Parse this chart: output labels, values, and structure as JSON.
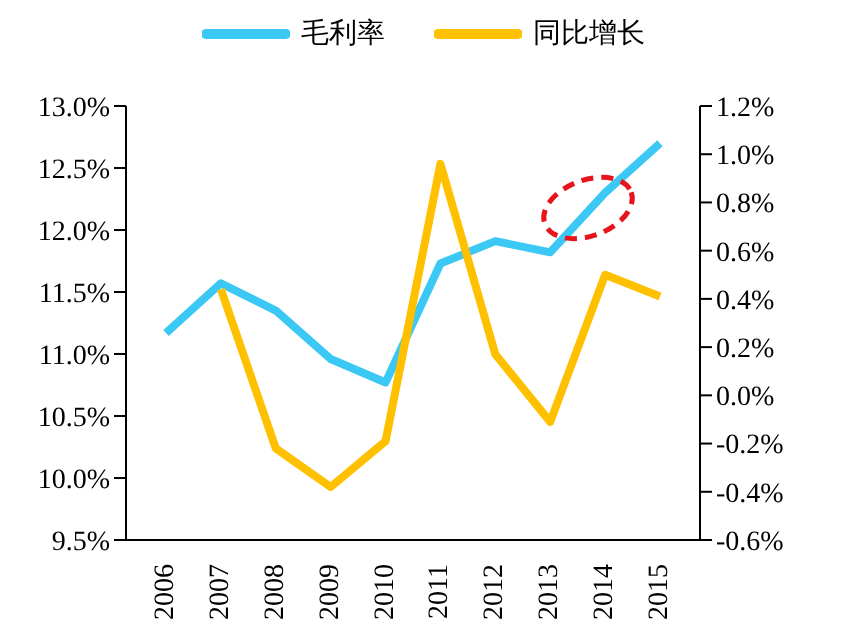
{
  "chart_data": {
    "type": "line",
    "categories": [
      "2006",
      "2007",
      "2008",
      "2009",
      "2010",
      "2011",
      "2012",
      "2013",
      "2014",
      "2015"
    ],
    "series": [
      {
        "name": "毛利率",
        "color": "#3cc8f4",
        "values": [
          11.17,
          11.57,
          11.35,
          10.96,
          10.77,
          11.73,
          11.91,
          11.82,
          12.3,
          12.7
        ]
      },
      {
        "name": "同比增长",
        "color": "#ffc000",
        "axis": "y2",
        "values": [
          null,
          0.44,
          -0.22,
          -0.38,
          -0.19,
          0.96,
          0.17,
          -0.11,
          0.5,
          0.41
        ]
      }
    ],
    "ylim": [
      9.5,
      13.0
    ],
    "yticks": [
      {
        "value": 9.5,
        "label": "9.5%"
      },
      {
        "value": 10.0,
        "label": "10.0%"
      },
      {
        "value": 10.5,
        "label": "10.5%"
      },
      {
        "value": 11.0,
        "label": "11.0%"
      },
      {
        "value": 11.5,
        "label": "11.5%"
      },
      {
        "value": 12.0,
        "label": "12.0%"
      },
      {
        "value": 12.5,
        "label": "12.5%"
      },
      {
        "value": 13.0,
        "label": "13.0%"
      }
    ],
    "y2lim": [
      -0.6,
      1.2
    ],
    "y2ticks": [
      {
        "value": -0.6,
        "label": "-0.6%"
      },
      {
        "value": -0.4,
        "label": "-0.4%"
      },
      {
        "value": -0.2,
        "label": "-0.2%"
      },
      {
        "value": 0.0,
        "label": "0.0%"
      },
      {
        "value": 0.2,
        "label": "0.2%"
      },
      {
        "value": 0.4,
        "label": "0.4%"
      },
      {
        "value": 0.6,
        "label": "0.6%"
      },
      {
        "value": 0.8,
        "label": "0.8%"
      },
      {
        "value": 1.0,
        "label": "1.0%"
      },
      {
        "value": 1.2,
        "label": "1.2%"
      }
    ],
    "grid": false,
    "legend": "top",
    "marker": "none",
    "line_style": "solid"
  }
}
